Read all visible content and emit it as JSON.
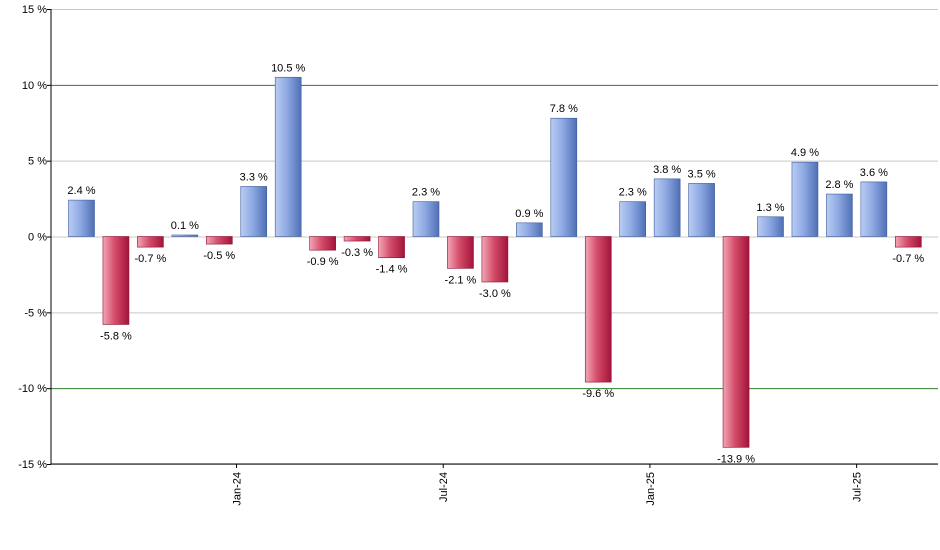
{
  "chart_data": {
    "type": "bar",
    "title": "",
    "xlabel": "",
    "ylabel": "",
    "ylim": [
      -15,
      15
    ],
    "y_ticks": [
      15,
      10,
      5,
      0,
      -5,
      -10,
      -15
    ],
    "y_tick_labels": [
      "15 %",
      "10 %",
      "5 %",
      "0 %",
      "-5 %",
      "-10 %",
      "-15 %"
    ],
    "x_tick_labels": [
      {
        "label": "Jan-24",
        "between": [
          4,
          5
        ]
      },
      {
        "label": "Jul-24",
        "between": [
          10,
          11
        ]
      },
      {
        "label": "Jan-25",
        "between": [
          16,
          17
        ]
      },
      {
        "label": "Jul-25",
        "between": [
          22,
          23
        ]
      }
    ],
    "values": [
      2.4,
      -5.8,
      -0.7,
      0.1,
      -0.5,
      3.3,
      10.5,
      -0.9,
      -0.3,
      -1.4,
      2.3,
      -2.1,
      -3.0,
      0.9,
      7.8,
      -9.6,
      2.3,
      3.8,
      3.5,
      -13.9,
      1.3,
      4.9,
      2.8,
      3.6,
      -0.7
    ],
    "value_labels": [
      "2.4 %",
      "-5.8 %",
      "-0.7 %",
      "0.1 %",
      "-0.5 %",
      "3.3 %",
      "10.5 %",
      "-0.9 %",
      "-0.3 %",
      "-1.4 %",
      "2.3 %",
      "-2.1 %",
      "-3.0 %",
      "0.9 %",
      "7.8 %",
      "-9.6 %",
      "2.3 %",
      "3.8 %",
      "3.5 %",
      "-13.9 %",
      "1.3 %",
      "4.9 %",
      "2.8 %",
      "3.6 %",
      "-0.7 %"
    ],
    "grid": true,
    "highlight_gridlines": [
      10,
      -10
    ],
    "colors": {
      "positive_light": "#b9ccf2",
      "positive_dark": "#4f70b5",
      "negative_light": "#f2a7b6",
      "negative_dark": "#a3133a",
      "grid": "#c8c8c8",
      "highlight_grid": "#2e7d2e",
      "axis": "#000000"
    }
  }
}
